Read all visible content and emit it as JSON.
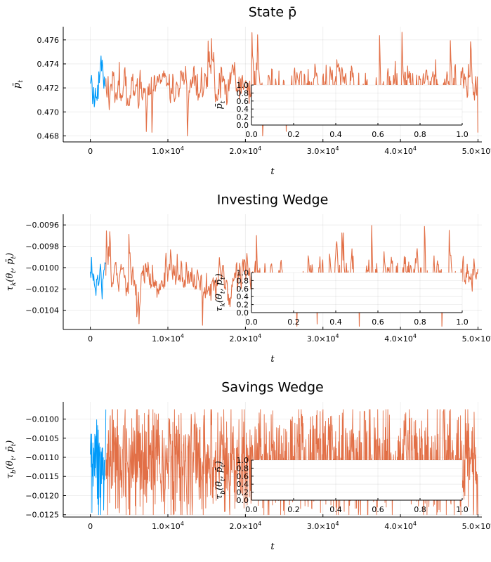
{
  "colors": {
    "series1": "#009af9",
    "series2": "#e26f46",
    "overlap": "#8a8a8a"
  },
  "chart_data": [
    {
      "type": "line",
      "title": "State p̄",
      "xlabel": "t",
      "ylabel": "p̄_t",
      "xlim": [
        -3500,
        50500
      ],
      "ylim": [
        0.4675,
        0.4771
      ],
      "xticks": [
        0,
        10000,
        20000,
        30000,
        40000,
        50000
      ],
      "xtick_labels": [
        "0",
        "1.0×10^4",
        "2.0×10^4",
        "3.0×10^4",
        "4.0×10^4",
        "5.0×10^4"
      ],
      "yticks": [
        0.468,
        0.47,
        0.472,
        0.474,
        0.476
      ],
      "ytick_labels": [
        "0.468",
        "0.470",
        "0.472",
        "0.474",
        "0.476"
      ],
      "series": [
        {
          "x_range": [
            0,
            2000
          ],
          "center": 0.4722,
          "min": 0.468,
          "max": 0.4767
        },
        {
          "x_range": [
            2000,
            50000
          ],
          "center": 0.4722,
          "min": 0.468,
          "max": 0.4767
        }
      ],
      "inset": {
        "ylabel": "p̄_t",
        "xlim": [
          0,
          1
        ],
        "ylim": [
          0,
          1
        ],
        "xtick_labels": [
          "0.0",
          "0.2",
          "0.4",
          "0.6",
          "0.8",
          "1.0"
        ],
        "ytick_labels": [
          "0.0",
          "0.2",
          "0.4",
          "0.6",
          "0.8",
          "1.0"
        ]
      }
    },
    {
      "type": "line",
      "title": "Investing Wedge",
      "xlabel": "t",
      "ylabel": "τ_k(θ_t, p̄_t)",
      "xlim": [
        -3500,
        50500
      ],
      "ylim": [
        -0.01058,
        -0.0095
      ],
      "xticks": [
        0,
        10000,
        20000,
        30000,
        40000,
        50000
      ],
      "xtick_labels": [
        "0",
        "1.0×10^4",
        "2.0×10^4",
        "3.0×10^4",
        "4.0×10^4",
        "5.0×10^4"
      ],
      "yticks": [
        -0.0104,
        -0.0102,
        -0.01,
        -0.0098,
        -0.0096
      ],
      "ytick_labels": [
        "-0.0104",
        "-0.0102",
        "-0.0100",
        "-0.0098",
        "-0.0096"
      ],
      "series": [
        {
          "x_range": [
            0,
            2000
          ],
          "center": -0.0101,
          "min": -0.01055,
          "max": -0.0096
        },
        {
          "x_range": [
            2000,
            50000
          ],
          "center": -0.0101,
          "min": -0.01055,
          "max": -0.0096
        }
      ],
      "inset": {
        "ylabel": "τ_k(θ_t, p̄_t)",
        "xlim": [
          0,
          1
        ],
        "ylim": [
          0,
          1
        ],
        "xtick_labels": [
          "0.0",
          "0.2",
          "0.4",
          "0.6",
          "0.8",
          "1.0"
        ],
        "ytick_labels": [
          "0.0",
          "0.2",
          "0.4",
          "0.6",
          "0.8",
          "1.0"
        ]
      }
    },
    {
      "type": "line",
      "title": "Savings Wedge",
      "xlabel": "t",
      "ylabel": "τ_b(θ_t, p̄_t)",
      "xlim": [
        -3500,
        50500
      ],
      "ylim": [
        -0.01256,
        -0.00955
      ],
      "xticks": [
        0,
        10000,
        20000,
        30000,
        40000,
        50000
      ],
      "xtick_labels": [
        "0",
        "1.0×10^4",
        "2.0×10^4",
        "3.0×10^4",
        "4.0×10^4",
        "5.0×10^4"
      ],
      "yticks": [
        -0.0125,
        -0.012,
        -0.0115,
        -0.011,
        -0.0105,
        -0.01
      ],
      "ytick_labels": [
        "-0.0125",
        "-0.0120",
        "-0.0115",
        "-0.0110",
        "-0.0105",
        "-0.0100"
      ],
      "series": [
        {
          "x_range": [
            0,
            2000
          ],
          "center": -0.0111,
          "min": -0.0125,
          "max": -0.00975
        },
        {
          "x_range": [
            2000,
            50000
          ],
          "center": -0.0111,
          "min": -0.0125,
          "max": -0.00975
        }
      ],
      "inset": {
        "ylabel": "τ_b(θ_t, p̄_t)",
        "xlim": [
          0,
          1
        ],
        "ylim": [
          0,
          1
        ],
        "xtick_labels": [
          "0.0",
          "0.2",
          "0.4",
          "0.6",
          "0.8",
          "1.0"
        ],
        "ytick_labels": [
          "0.0",
          "0.2",
          "0.4",
          "0.6",
          "0.8",
          "1.0"
        ]
      }
    }
  ]
}
